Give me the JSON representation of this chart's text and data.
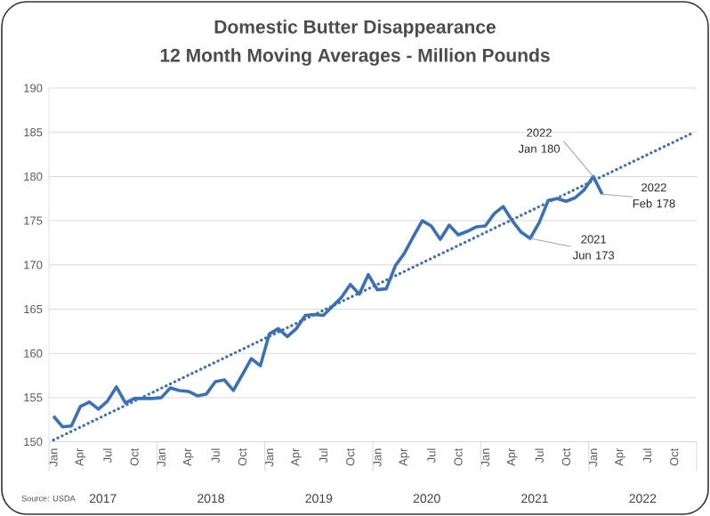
{
  "chart_data": {
    "type": "line",
    "title": "Domestic Butter Disappearance",
    "subtitle": "12 Month Moving Averages - Million Pounds",
    "categories": [
      "Jan",
      null,
      null,
      "Apr",
      null,
      null,
      "Jul",
      null,
      null,
      "Oct",
      null,
      null,
      "Jan",
      null,
      null,
      "Apr",
      null,
      null,
      "Jul",
      null,
      null,
      "Oct",
      null,
      null,
      "Jan",
      null,
      null,
      "Apr",
      null,
      null,
      "Jul",
      null,
      null,
      "Oct",
      null,
      null,
      "Jan",
      null,
      null,
      "Apr",
      null,
      null,
      "Jul",
      null,
      null,
      "Oct",
      null,
      null,
      "Jan",
      null,
      null,
      "Apr",
      null,
      null,
      "Jul",
      null,
      null,
      "Oct",
      null,
      null,
      "Jan",
      null,
      null,
      "Apr",
      null,
      null,
      "Jul",
      null,
      null,
      "Oct",
      null,
      null
    ],
    "series": [
      {
        "color": "#3a70b8",
        "values": [
          152.9,
          151.7,
          151.8,
          154.0,
          154.5,
          153.7,
          154.6,
          156.2,
          154.4,
          154.9,
          154.9,
          154.9,
          155.0,
          156.1,
          155.8,
          155.7,
          155.2,
          155.4,
          156.8,
          157.0,
          155.8,
          157.6,
          159.4,
          158.6,
          162.2,
          162.8,
          161.9,
          162.8,
          164.3,
          164.4,
          164.3,
          165.3,
          166.3,
          167.8,
          166.7,
          168.9,
          167.2,
          167.3,
          169.9,
          171.3,
          173.2,
          175.0,
          174.4,
          172.9,
          174.5,
          173.4,
          173.8,
          174.3,
          174.4,
          175.8,
          176.6,
          175.0,
          173.7,
          173,
          174.8,
          177.3,
          177.5,
          177.2,
          177.6,
          178.5,
          180,
          178,
          null,
          null,
          null,
          null,
          null,
          null,
          null,
          null,
          null,
          null
        ],
        "value_labels": [
          null,
          null,
          null,
          null,
          null,
          null,
          null,
          null,
          null,
          null,
          null,
          null,
          null,
          null,
          null,
          null,
          null,
          null,
          null,
          null,
          null,
          null,
          null,
          null,
          null,
          null,
          null,
          null,
          null,
          null,
          null,
          null,
          null,
          null,
          null,
          null,
          null,
          null,
          null,
          null,
          null,
          null,
          null,
          null,
          null,
          null,
          null,
          null,
          null,
          null,
          null,
          null,
          null,
          "2021 Jun 173",
          null,
          null,
          null,
          null,
          null,
          null,
          "2022 Jan 180",
          "2022 Feb 178",
          null,
          null,
          null,
          null,
          null,
          null,
          null,
          null,
          null,
          null
        ]
      },
      {
        "type": "line",
        "color": "#3a70b8",
        "line_style": "dotted",
        "values": [
          150.2,
          null,
          null,
          null,
          null,
          null,
          null,
          null,
          null,
          null,
          null,
          null,
          null,
          null,
          null,
          null,
          null,
          null,
          null,
          null,
          null,
          null,
          null,
          null,
          null,
          null,
          null,
          null,
          null,
          null,
          null,
          null,
          null,
          null,
          null,
          null,
          null,
          null,
          null,
          null,
          null,
          null,
          null,
          null,
          null,
          null,
          null,
          null,
          null,
          null,
          null,
          null,
          null,
          null,
          null,
          null,
          null,
          null,
          null,
          null,
          null,
          null,
          null,
          null,
          null,
          null,
          null,
          null,
          null,
          null,
          null,
          184.9
        ]
      }
    ],
    "ylim": [
      150,
      190
    ],
    "yticks": [
      150,
      155,
      160,
      165,
      170,
      175,
      180,
      185,
      190
    ],
    "grid": "y",
    "annotations": [
      "2017",
      "2018",
      "2019",
      "2020",
      "2021",
      "2022",
      "Source: USDA"
    ]
  }
}
